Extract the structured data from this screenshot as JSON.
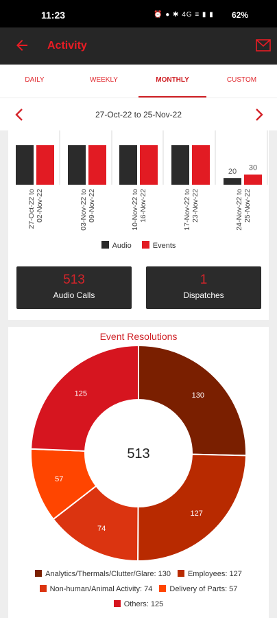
{
  "status": {
    "time": "11:23",
    "icons": "⏰ ● ✱ 4G ≡ ▮ ▮",
    "battery": "62%"
  },
  "appbar": {
    "title": "Activity"
  },
  "tabs": [
    {
      "label": "DAILY"
    },
    {
      "label": "WEEKLY"
    },
    {
      "label": "MONTHLY"
    },
    {
      "label": "CUSTOM"
    }
  ],
  "date_range": "27-Oct-22 to 25-Nov-22",
  "colors": {
    "audio": "#2b2b2b",
    "events": "#e21b23",
    "accent": "#cf1f24"
  },
  "chart_data": [
    {
      "type": "bar",
      "categories": [
        "27-Oct-22 to 02-Nov-22",
        "03-Nov-22 to 09-Nov-22",
        "10-Nov-22 to 16-Nov-22",
        "17-Nov-22 to 23-Nov-22",
        "24-Nov-22 to 25-Nov-22"
      ],
      "series": [
        {
          "name": "Audio",
          "values": [
            118,
            118,
            118,
            118,
            20
          ]
        },
        {
          "name": "Events",
          "values": [
            118,
            118,
            118,
            118,
            30
          ]
        }
      ],
      "data_labels": [
        "20",
        "30"
      ],
      "legend": "bottom"
    },
    {
      "type": "pie",
      "title": "Event Resolutions",
      "center_label": "513",
      "slices": [
        {
          "label": "Analytics/Thermals/Clutter/Glare",
          "value": 130,
          "color": "#7a1f00"
        },
        {
          "label": "Employees",
          "value": 127,
          "color": "#b82a00"
        },
        {
          "label": "Non-human/Animal Activity",
          "value": 74,
          "color": "#db3410"
        },
        {
          "label": "Delivery of Parts",
          "value": 57,
          "color": "#ff4500"
        },
        {
          "label": "Others",
          "value": 125,
          "color": "#d6151f"
        }
      ]
    }
  ],
  "stats": [
    {
      "value": "513",
      "label": "Audio Calls"
    },
    {
      "value": "1",
      "label": "Dispatches"
    }
  ],
  "legend_bar": {
    "audio": "Audio",
    "events": "Events"
  },
  "legend_pie": [
    "Analytics/Thermals/Clutter/Glare: 130",
    "Employees: 127",
    "Non-human/Animal Activity: 74",
    "Delivery of Parts: 57",
    "Others: 125"
  ]
}
